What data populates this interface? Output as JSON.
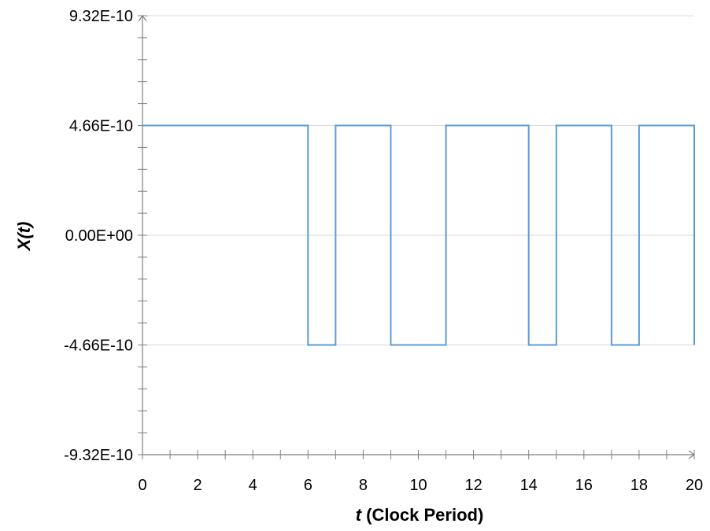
{
  "chart_data": {
    "type": "line",
    "title": "",
    "xlabel_var": "t",
    "xlabel_rest": " (Clock Period)",
    "ylabel": "X(t)",
    "xlim": [
      0,
      20
    ],
    "ylim": [
      -9.32e-10,
      9.32e-10
    ],
    "x_tick_labels": [
      "0",
      "2",
      "4",
      "6",
      "8",
      "10",
      "12",
      "14",
      "16",
      "18",
      "20"
    ],
    "y_tick_labels": [
      "9.32E-10",
      "4.66E-10",
      "0.00E+00",
      "-4.66E-10",
      "-9.32E-10"
    ],
    "gridlines": "horizontal",
    "series": [
      {
        "line_style": "step",
        "color": "#5B9BD5",
        "x": [
          0,
          6,
          6,
          7,
          7,
          9,
          9,
          11,
          11,
          14,
          14,
          15,
          15,
          17,
          17,
          18,
          18,
          20,
          20
        ],
        "y": [
          4.66e-10,
          4.66e-10,
          -4.66e-10,
          -4.66e-10,
          4.66e-10,
          4.66e-10,
          -4.66e-10,
          -4.66e-10,
          4.66e-10,
          4.66e-10,
          -4.66e-10,
          -4.66e-10,
          4.66e-10,
          4.66e-10,
          -4.66e-10,
          -4.66e-10,
          4.66e-10,
          4.66e-10,
          -4.66e-10
        ]
      }
    ],
    "colors": {
      "series": "#5B9BD5",
      "grid": "#D9D9D9",
      "axis": "#7F7F7F"
    }
  }
}
